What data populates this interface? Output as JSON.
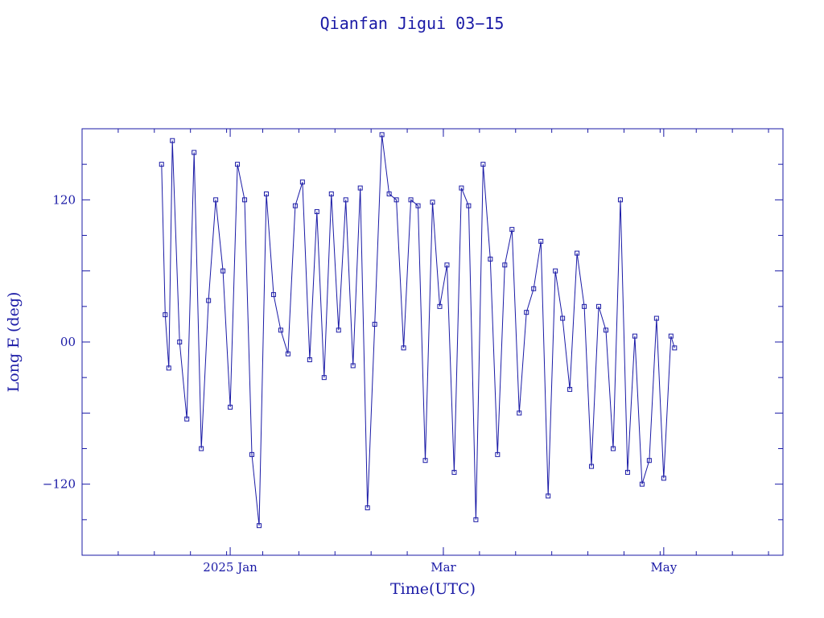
{
  "chart_data": {
    "type": "line",
    "title": "Qianfan Jigui 03−15",
    "xlabel": "Time(UTC)",
    "ylabel": "Long E (deg)",
    "colors": {
      "ink": "#1a1aa6"
    },
    "xlim": [
      "2024-11-21",
      "2025-06-03"
    ],
    "ylim": [
      -180,
      180
    ],
    "x_ticks": [
      {
        "date": "2025-01-01",
        "label": "2025 Jan"
      },
      {
        "date": "2025-03-01",
        "label": "Mar"
      },
      {
        "date": "2025-05-01",
        "label": "May"
      }
    ],
    "y_ticks": [
      {
        "value": 120,
        "label": "120"
      },
      {
        "value": 0,
        "label": "00"
      },
      {
        "value": -120,
        "label": "−120"
      }
    ],
    "marker": "square",
    "series": [
      {
        "x": [
          "2024-12-13",
          "2024-12-14",
          "2024-12-15",
          "2024-12-16",
          "2024-12-18",
          "2024-12-20",
          "2024-12-22",
          "2024-12-24",
          "2024-12-26",
          "2024-12-28",
          "2024-12-30",
          "2025-01-01",
          "2025-01-03",
          "2025-01-05",
          "2025-01-07",
          "2025-01-09",
          "2025-01-11",
          "2025-01-13",
          "2025-01-15",
          "2025-01-17",
          "2025-01-19",
          "2025-01-21",
          "2025-01-23",
          "2025-01-25",
          "2025-01-27",
          "2025-01-29",
          "2025-01-31",
          "2025-02-02",
          "2025-02-04",
          "2025-02-06",
          "2025-02-08",
          "2025-02-10",
          "2025-02-12",
          "2025-02-14",
          "2025-02-16",
          "2025-02-18",
          "2025-02-20",
          "2025-02-22",
          "2025-02-24",
          "2025-02-26",
          "2025-02-28",
          "2025-03-02",
          "2025-03-04",
          "2025-03-06",
          "2025-03-08",
          "2025-03-10",
          "2025-03-12",
          "2025-03-14",
          "2025-03-16",
          "2025-03-18",
          "2025-03-20",
          "2025-03-22",
          "2025-03-24",
          "2025-03-26",
          "2025-03-28",
          "2025-03-30",
          "2025-04-01",
          "2025-04-03",
          "2025-04-05",
          "2025-04-07",
          "2025-04-09",
          "2025-04-11",
          "2025-04-13",
          "2025-04-15",
          "2025-04-17",
          "2025-04-19",
          "2025-04-21",
          "2025-04-23",
          "2025-04-25",
          "2025-04-27",
          "2025-04-29",
          "2025-05-01",
          "2025-05-03",
          "2025-05-04"
        ],
        "y": [
          150,
          23,
          -22,
          170,
          0,
          -65,
          160,
          -90,
          35,
          120,
          60,
          -55,
          150,
          120,
          -95,
          -155,
          125,
          40,
          10,
          -10,
          115,
          135,
          -15,
          110,
          -30,
          125,
          10,
          120,
          -20,
          130,
          -140,
          15,
          175,
          125,
          120,
          -5,
          120,
          115,
          -100,
          118,
          30,
          65,
          -110,
          130,
          115,
          -150,
          150,
          70,
          -95,
          65,
          95,
          -60,
          25,
          45,
          85,
          -130,
          60,
          20,
          -40,
          75,
          30,
          -105,
          30,
          10,
          -90,
          120,
          -110,
          5,
          -120,
          -100,
          20,
          -115,
          5,
          -5
        ]
      }
    ]
  }
}
